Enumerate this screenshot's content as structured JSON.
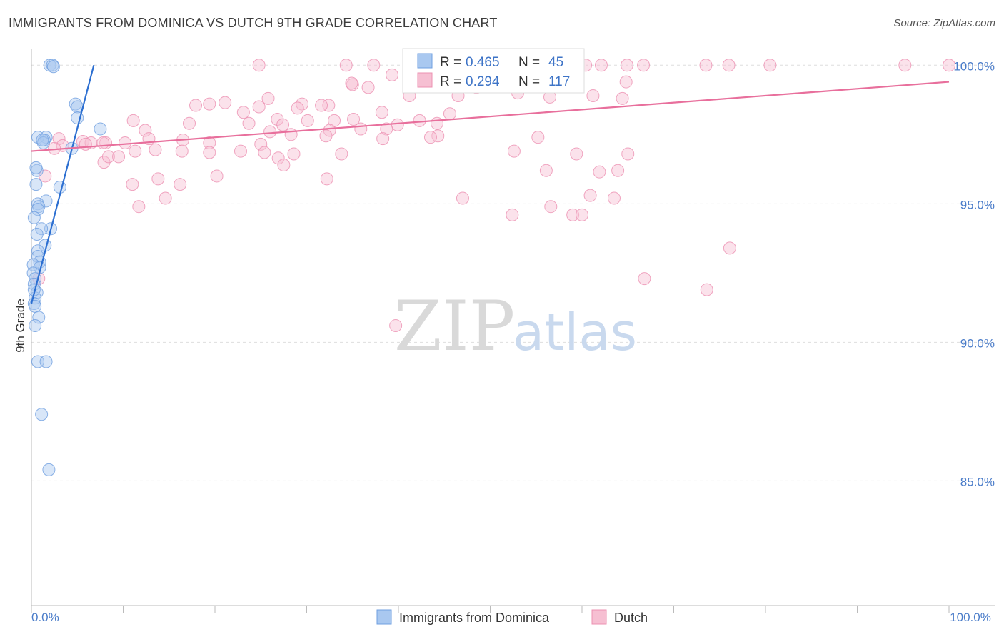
{
  "header": {
    "title": "IMMIGRANTS FROM DOMINICA VS DUTCH 9TH GRADE CORRELATION CHART",
    "source": "Source: ZipAtlas.com"
  },
  "watermark": {
    "part1": "ZIP",
    "part2": "atlas"
  },
  "chart_data": {
    "type": "scatter",
    "title": "IMMIGRANTS FROM DOMINICA VS DUTCH 9TH GRADE CORRELATION CHART",
    "xlabel": "",
    "ylabel": "9th Grade",
    "xlim": [
      0,
      100
    ],
    "ylim": [
      80.5,
      100.6
    ],
    "x_tick_labels": [
      {
        "value": 0,
        "label": "0.0%"
      },
      {
        "value": 100,
        "label": "100.0%"
      }
    ],
    "y_tick_labels": [
      {
        "value": 100,
        "label": "100.0%"
      },
      {
        "value": 95,
        "label": "95.0%"
      },
      {
        "value": 90,
        "label": "90.0%"
      },
      {
        "value": 85,
        "label": "85.0%"
      }
    ],
    "grid": true,
    "colors": {
      "dominica_fill": "#a9c8f0",
      "dominica_stroke": "#6f9fe0",
      "dominica_line": "#2c6fd1",
      "dutch_fill": "#f6bfd2",
      "dutch_stroke": "#ec90b1",
      "dutch_line": "#e86f9c",
      "grid": "#dedede",
      "axis": "#bbbbbb"
    },
    "legend": {
      "placement": "top-center",
      "entries": [
        {
          "r_label": "R = ",
          "r_value": "0.465",
          "n_label": "N = ",
          "n_value": "45"
        },
        {
          "r_label": "R = ",
          "r_value": "0.294",
          "n_label": "N = ",
          "n_value": "117"
        }
      ]
    },
    "bottom_legend": [
      "Immigrants from Dominica",
      "Dutch"
    ],
    "series": [
      {
        "name": "Immigrants from Dominica",
        "r": 0.465,
        "n": 45,
        "trend": [
          [
            0,
            91.4
          ],
          [
            6.8,
            100.0
          ]
        ],
        "points": [
          [
            2.0,
            100.0
          ],
          [
            2.3,
            100.0
          ],
          [
            2.4,
            99.95
          ],
          [
            4.8,
            98.6
          ],
          [
            5.0,
            98.5
          ],
          [
            5.0,
            98.1
          ],
          [
            7.5,
            97.7
          ],
          [
            1.6,
            97.4
          ],
          [
            0.7,
            97.4
          ],
          [
            1.4,
            97.3
          ],
          [
            1.3,
            97.2
          ],
          [
            4.4,
            97.0
          ],
          [
            0.6,
            96.2
          ],
          [
            0.5,
            95.7
          ],
          [
            3.1,
            95.6
          ],
          [
            1.6,
            95.1
          ],
          [
            0.7,
            95.0
          ],
          [
            0.8,
            94.9
          ],
          [
            0.7,
            94.8
          ],
          [
            0.3,
            94.5
          ],
          [
            2.1,
            94.1
          ],
          [
            1.1,
            94.1
          ],
          [
            1.5,
            93.5
          ],
          [
            0.7,
            93.3
          ],
          [
            0.7,
            93.1
          ],
          [
            0.9,
            92.9
          ],
          [
            0.2,
            92.8
          ],
          [
            0.9,
            92.7
          ],
          [
            0.2,
            92.5
          ],
          [
            0.4,
            92.3
          ],
          [
            0.3,
            92.1
          ],
          [
            0.6,
            91.8
          ],
          [
            0.4,
            91.6
          ],
          [
            0.3,
            91.4
          ],
          [
            0.4,
            91.3
          ],
          [
            0.8,
            90.9
          ],
          [
            0.4,
            90.6
          ],
          [
            0.7,
            89.3
          ],
          [
            1.6,
            89.3
          ],
          [
            1.1,
            87.4
          ],
          [
            1.9,
            85.4
          ],
          [
            1.2,
            97.3
          ],
          [
            0.5,
            96.3
          ],
          [
            0.6,
            93.9
          ],
          [
            0.3,
            91.9
          ]
        ]
      },
      {
        "name": "Dutch",
        "r": 0.294,
        "n": 117,
        "trend": [
          [
            0,
            96.9
          ],
          [
            100,
            99.4
          ]
        ],
        "points": [
          [
            24.8,
            100.0
          ],
          [
            34.3,
            100.0
          ],
          [
            37.3,
            100.0
          ],
          [
            45.0,
            100.0
          ],
          [
            50.6,
            100.0
          ],
          [
            59.0,
            100.0
          ],
          [
            60.4,
            100.0
          ],
          [
            62.1,
            100.0
          ],
          [
            64.9,
            100.0
          ],
          [
            73.5,
            100.0
          ],
          [
            76.0,
            100.0
          ],
          [
            80.5,
            100.0
          ],
          [
            95.2,
            100.0
          ],
          [
            100.0,
            100.0
          ],
          [
            66.7,
            100.0
          ],
          [
            39.3,
            99.65
          ],
          [
            43.8,
            99.55
          ],
          [
            52.9,
            99.45
          ],
          [
            64.8,
            99.4
          ],
          [
            42.4,
            99.35
          ],
          [
            35.0,
            99.3
          ],
          [
            36.7,
            99.2
          ],
          [
            49.9,
            99.25
          ],
          [
            53.0,
            99.0
          ],
          [
            41.2,
            98.9
          ],
          [
            46.5,
            98.9
          ],
          [
            56.5,
            98.85
          ],
          [
            61.2,
            98.9
          ],
          [
            64.4,
            98.8
          ],
          [
            25.8,
            98.8
          ],
          [
            17.9,
            98.55
          ],
          [
            21.1,
            98.65
          ],
          [
            19.4,
            98.6
          ],
          [
            29.5,
            98.6
          ],
          [
            24.8,
            98.5
          ],
          [
            32.4,
            98.55
          ],
          [
            29.0,
            98.45
          ],
          [
            31.6,
            98.55
          ],
          [
            23.1,
            98.3
          ],
          [
            38.2,
            98.3
          ],
          [
            45.6,
            98.25
          ],
          [
            11.1,
            98.0
          ],
          [
            26.8,
            98.05
          ],
          [
            30.1,
            98.0
          ],
          [
            33.0,
            98.0
          ],
          [
            35.1,
            98.05
          ],
          [
            42.3,
            98.0
          ],
          [
            17.2,
            97.9
          ],
          [
            23.7,
            97.9
          ],
          [
            27.4,
            97.85
          ],
          [
            39.9,
            97.85
          ],
          [
            44.2,
            97.9
          ],
          [
            12.4,
            97.65
          ],
          [
            32.5,
            97.65
          ],
          [
            35.9,
            97.7
          ],
          [
            38.7,
            97.7
          ],
          [
            26.0,
            97.6
          ],
          [
            28.3,
            97.5
          ],
          [
            32.1,
            97.45
          ],
          [
            44.3,
            97.45
          ],
          [
            12.8,
            97.35
          ],
          [
            38.3,
            97.35
          ],
          [
            43.5,
            97.4
          ],
          [
            55.2,
            97.4
          ],
          [
            16.5,
            97.3
          ],
          [
            19.4,
            97.2
          ],
          [
            25.0,
            97.15
          ],
          [
            5.6,
            97.25
          ],
          [
            6.5,
            97.2
          ],
          [
            8.1,
            97.2
          ],
          [
            10.2,
            97.2
          ],
          [
            3.0,
            97.35
          ],
          [
            3.4,
            97.1
          ],
          [
            11.3,
            96.9
          ],
          [
            16.4,
            96.9
          ],
          [
            22.8,
            96.9
          ],
          [
            13.5,
            96.95
          ],
          [
            19.4,
            96.85
          ],
          [
            25.4,
            96.85
          ],
          [
            28.6,
            96.8
          ],
          [
            5.9,
            97.15
          ],
          [
            7.8,
            97.2
          ],
          [
            33.8,
            96.8
          ],
          [
            52.6,
            96.9
          ],
          [
            59.4,
            96.8
          ],
          [
            65.0,
            96.8
          ],
          [
            7.9,
            96.5
          ],
          [
            8.4,
            96.7
          ],
          [
            9.5,
            96.7
          ],
          [
            26.9,
            96.65
          ],
          [
            27.5,
            96.4
          ],
          [
            13.8,
            95.9
          ],
          [
            20.2,
            96.0
          ],
          [
            11.0,
            95.7
          ],
          [
            16.2,
            95.7
          ],
          [
            56.1,
            96.2
          ],
          [
            61.9,
            96.15
          ],
          [
            63.9,
            96.2
          ],
          [
            32.2,
            95.9
          ],
          [
            11.7,
            94.9
          ],
          [
            14.6,
            95.2
          ],
          [
            47.0,
            95.2
          ],
          [
            52.4,
            94.6
          ],
          [
            56.6,
            94.9
          ],
          [
            59.0,
            94.6
          ],
          [
            60.0,
            94.6
          ],
          [
            60.9,
            95.3
          ],
          [
            63.5,
            95.2
          ],
          [
            76.1,
            93.4
          ],
          [
            66.8,
            92.3
          ],
          [
            73.6,
            91.9
          ],
          [
            39.7,
            90.6
          ],
          [
            2.5,
            97.0
          ],
          [
            1.5,
            96.0
          ],
          [
            0.8,
            92.3
          ],
          [
            34.9,
            99.35
          ],
          [
            48.5,
            99.2
          ]
        ]
      }
    ]
  }
}
